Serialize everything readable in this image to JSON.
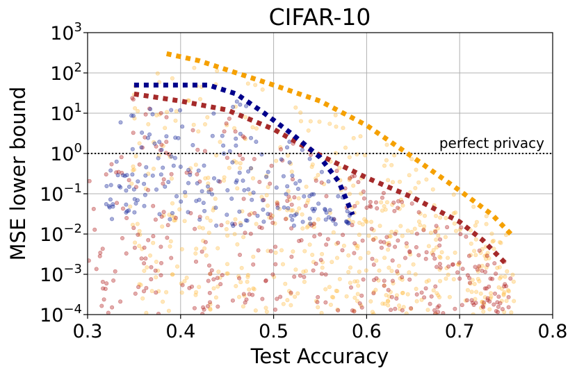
{
  "chart_data": {
    "type": "scatter",
    "title": "CIFAR-10",
    "xlabel": "Test Accuracy",
    "ylabel": "MSE lower bound",
    "xlim": [
      0.3,
      0.8
    ],
    "ylim": [
      0.0001,
      1000
    ],
    "yscale": "log",
    "grid": true,
    "x_ticks": [
      0.3,
      0.4,
      0.5,
      0.6,
      0.7,
      0.8
    ],
    "x_tick_labels": [
      "0.3",
      "0.4",
      "0.5",
      "0.6",
      "0.7",
      "0.8"
    ],
    "y_ticks": [
      0.0001,
      0.001,
      0.01,
      0.1,
      1,
      10,
      100,
      1000
    ],
    "y_tick_base": "10",
    "y_tick_exponents": [
      "−4",
      "−3",
      "−2",
      "−1",
      "0",
      "1",
      "2",
      "3"
    ],
    "reference_line": {
      "y": 1,
      "label": "perfect privacy",
      "style": "dotted",
      "color": "#000000"
    },
    "series": [
      {
        "name": "orange",
        "point_color": "#FFC04D",
        "frontier_color": "#F5A000",
        "frontier": [
          [
            0.385,
            300
          ],
          [
            0.42,
            200
          ],
          [
            0.46,
            100
          ],
          [
            0.5,
            50
          ],
          [
            0.55,
            20
          ],
          [
            0.6,
            5
          ],
          [
            0.65,
            0.8
          ],
          [
            0.7,
            0.12
          ],
          [
            0.735,
            0.03
          ],
          [
            0.755,
            0.01
          ]
        ],
        "cloud_x": [
          0.345,
          0.76
        ],
        "cloud_upper": [
          [
            0.345,
            200
          ],
          [
            0.385,
            300
          ],
          [
            0.42,
            200
          ],
          [
            0.46,
            100
          ],
          [
            0.5,
            50
          ],
          [
            0.55,
            20
          ],
          [
            0.6,
            5
          ],
          [
            0.65,
            0.8
          ],
          [
            0.7,
            0.12
          ],
          [
            0.735,
            0.03
          ],
          [
            0.76,
            0.01
          ]
        ],
        "cloud_lower_log10": -4,
        "num_points": 520
      },
      {
        "name": "dark red",
        "point_color": "#B22222",
        "frontier_color": "#A52A2A",
        "frontier": [
          [
            0.35,
            30
          ],
          [
            0.4,
            20
          ],
          [
            0.45,
            12
          ],
          [
            0.5,
            4
          ],
          [
            0.55,
            0.9
          ],
          [
            0.6,
            0.25
          ],
          [
            0.65,
            0.08
          ],
          [
            0.7,
            0.02
          ],
          [
            0.725,
            0.007
          ],
          [
            0.75,
            0.0018
          ]
        ],
        "cloud_x": [
          0.3,
          0.755
        ],
        "cloud_upper": [
          [
            0.3,
            0.3
          ],
          [
            0.32,
            1
          ],
          [
            0.345,
            30
          ],
          [
            0.4,
            20
          ],
          [
            0.45,
            12
          ],
          [
            0.5,
            4
          ],
          [
            0.55,
            0.9
          ],
          [
            0.6,
            0.25
          ],
          [
            0.65,
            0.08
          ],
          [
            0.7,
            0.02
          ],
          [
            0.725,
            0.007
          ],
          [
            0.755,
            0.0018
          ]
        ],
        "cloud_lower_log10": -4,
        "num_points": 360
      },
      {
        "name": "navy",
        "point_color": "#1A2A9A",
        "frontier_color": "#00008B",
        "frontier": [
          [
            0.35,
            50
          ],
          [
            0.38,
            50
          ],
          [
            0.4,
            50
          ],
          [
            0.43,
            50
          ],
          [
            0.46,
            30
          ],
          [
            0.49,
            10
          ],
          [
            0.52,
            3
          ],
          [
            0.55,
            0.8
          ],
          [
            0.57,
            0.2
          ],
          [
            0.585,
            0.03
          ]
        ],
        "cloud_x": [
          0.32,
          0.585
        ],
        "cloud_upper": [
          [
            0.32,
            0.3
          ],
          [
            0.345,
            50
          ],
          [
            0.43,
            50
          ],
          [
            0.46,
            30
          ],
          [
            0.49,
            10
          ],
          [
            0.52,
            3
          ],
          [
            0.55,
            0.8
          ],
          [
            0.57,
            0.2
          ],
          [
            0.585,
            0.03
          ]
        ],
        "cloud_lower_log10": -1.8,
        "num_points": 190
      }
    ]
  }
}
